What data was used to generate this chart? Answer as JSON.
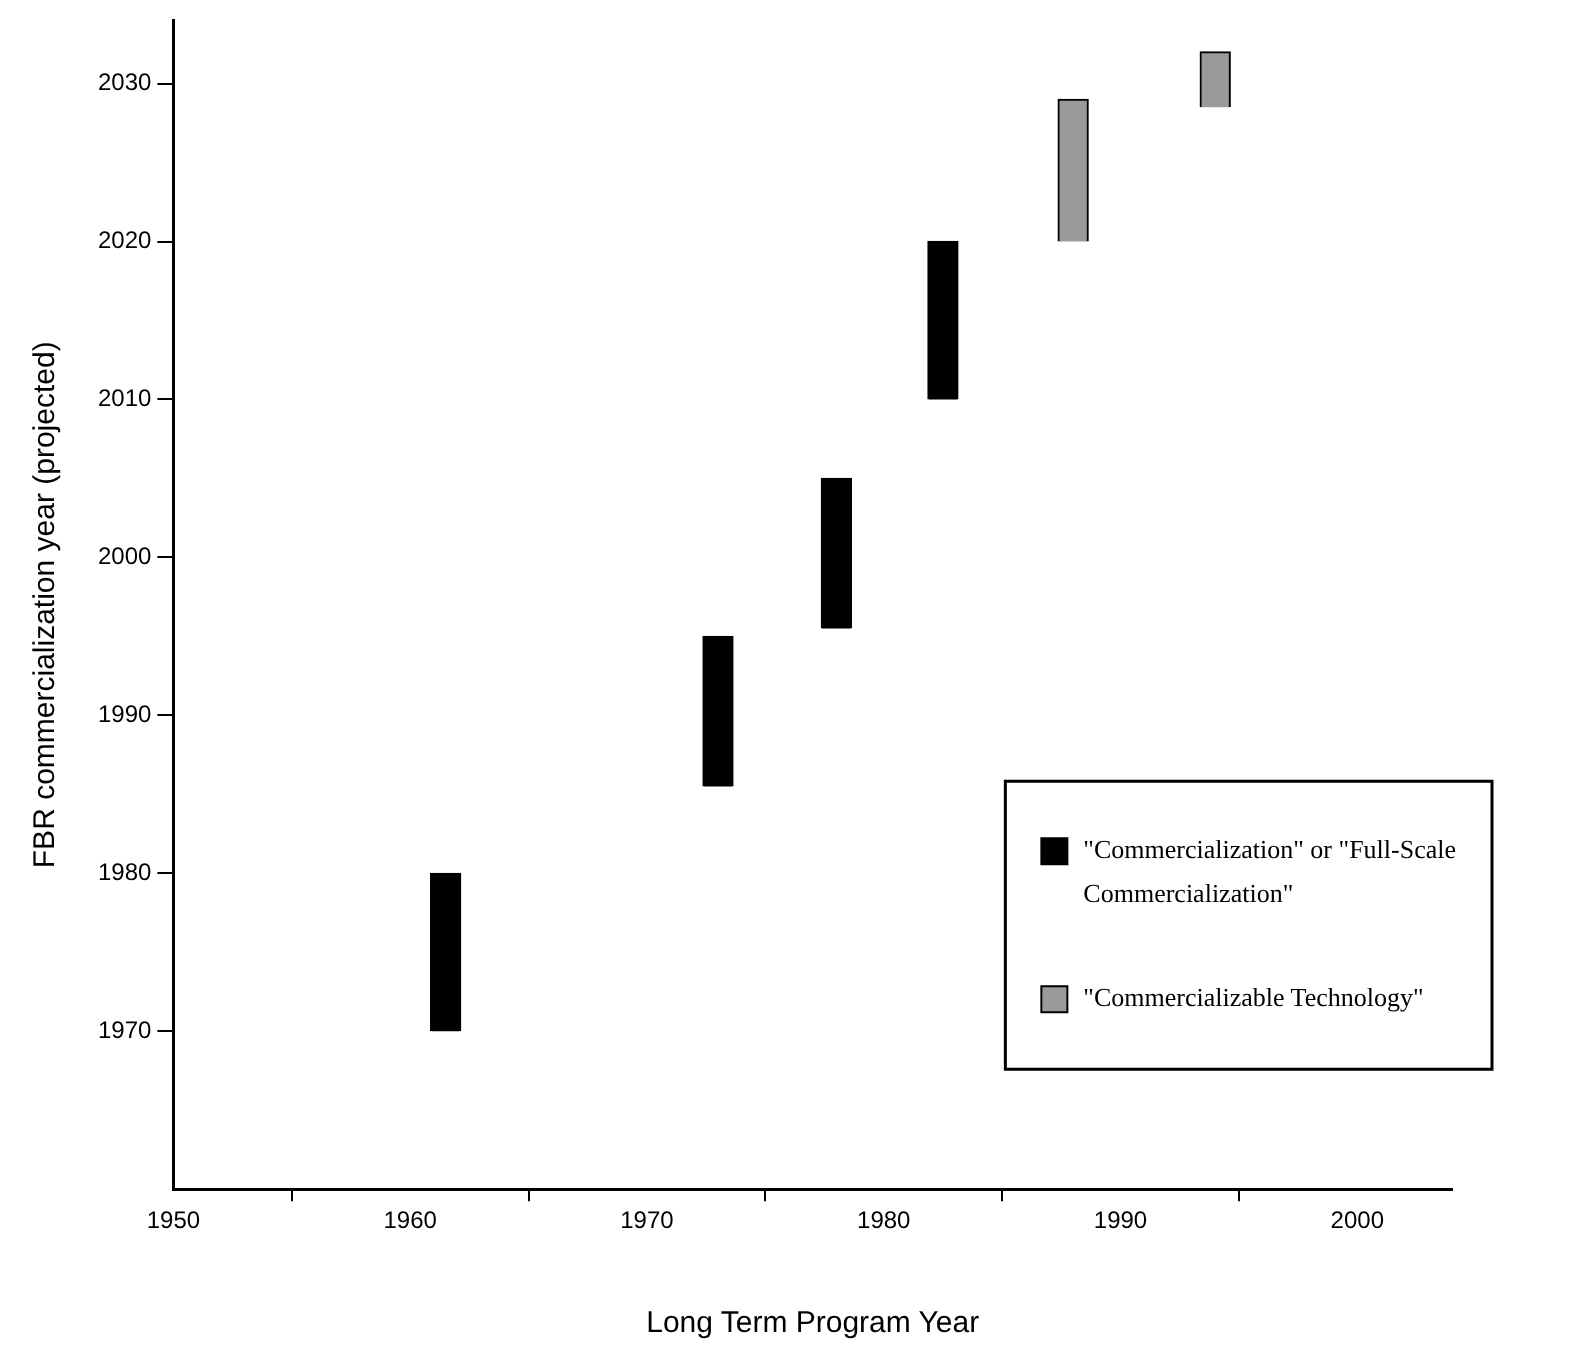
{
  "chart_data": {
    "type": "bar",
    "xlabel": "Long Term Program Year",
    "ylabel": "FBR commercialization year (projected)",
    "series": [
      {
        "name": "\"Commercialization\" or \"Full-Scale Commercialization\"",
        "color": "#000000",
        "x": [
          1961.5,
          1973,
          1978,
          1982.5
        ],
        "base": [
          1970,
          1985.5,
          1995.5,
          2010
        ],
        "values": [
          10,
          9.5,
          9.5,
          10
        ]
      },
      {
        "name": "\"Commercializable Technology\"",
        "color": "#9a9a9a",
        "x": [
          1988,
          1994
        ],
        "base": [
          2020,
          2028.5
        ],
        "values": [
          9,
          3.5
        ]
      }
    ],
    "xlim": [
      1950,
      2004
    ],
    "xticks": [
      1950,
      1960,
      1970,
      1980,
      1990,
      2000
    ],
    "ylim": [
      1960,
      2034
    ],
    "yticks": [
      1970,
      1980,
      1990,
      2000,
      2010,
      2020,
      2030
    ],
    "grid": false,
    "legend": "bottom right"
  }
}
